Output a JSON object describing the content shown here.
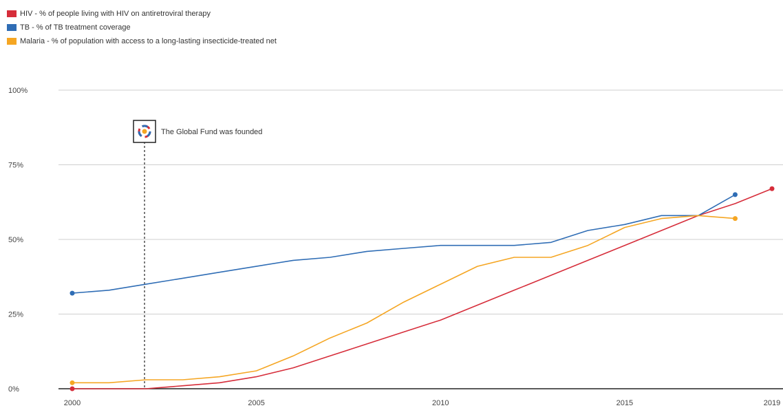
{
  "chart_data": {
    "type": "line",
    "x_ticks": [
      2000,
      2005,
      2010,
      2015,
      2019
    ],
    "y_ticks": [
      "0%",
      "25%",
      "50%",
      "75%",
      "100%"
    ],
    "xlim": [
      2000,
      2019
    ],
    "ylim": [
      0,
      100
    ],
    "grid": true,
    "legend_position": "top-left",
    "series": [
      {
        "name": "HIV - % of people living with HIV on antiretroviral therapy",
        "color": "#d62d3a",
        "x": [
          2000,
          2001,
          2002,
          2003,
          2004,
          2005,
          2006,
          2007,
          2008,
          2009,
          2010,
          2011,
          2012,
          2013,
          2014,
          2015,
          2016,
          2017,
          2018,
          2019
        ],
        "y": [
          0,
          0,
          0,
          1,
          2,
          4,
          7,
          11,
          15,
          19,
          23,
          28,
          33,
          38,
          43,
          48,
          53,
          58,
          62,
          67
        ]
      },
      {
        "name": "TB - % of TB treatment coverage",
        "color": "#2f6db5",
        "x": [
          2000,
          2001,
          2002,
          2003,
          2004,
          2005,
          2006,
          2007,
          2008,
          2009,
          2010,
          2011,
          2012,
          2013,
          2014,
          2015,
          2016,
          2017,
          2018
        ],
        "y": [
          32,
          33,
          35,
          37,
          39,
          41,
          43,
          44,
          46,
          47,
          48,
          48,
          48,
          49,
          53,
          55,
          58,
          58,
          65
        ]
      },
      {
        "name": "Malaria - % of population with access to a long-lasting insecticide-treated net",
        "color": "#f5a623",
        "x": [
          2000,
          2001,
          2002,
          2003,
          2004,
          2005,
          2006,
          2007,
          2008,
          2009,
          2010,
          2011,
          2012,
          2013,
          2014,
          2015,
          2016,
          2017,
          2018
        ],
        "y": [
          2,
          2,
          3,
          3,
          4,
          6,
          11,
          17,
          22,
          29,
          35,
          41,
          44,
          44,
          48,
          54,
          57,
          58,
          57
        ]
      }
    ],
    "annotations": [
      {
        "x": 2002,
        "text": "The Global Fund was founded"
      }
    ]
  }
}
